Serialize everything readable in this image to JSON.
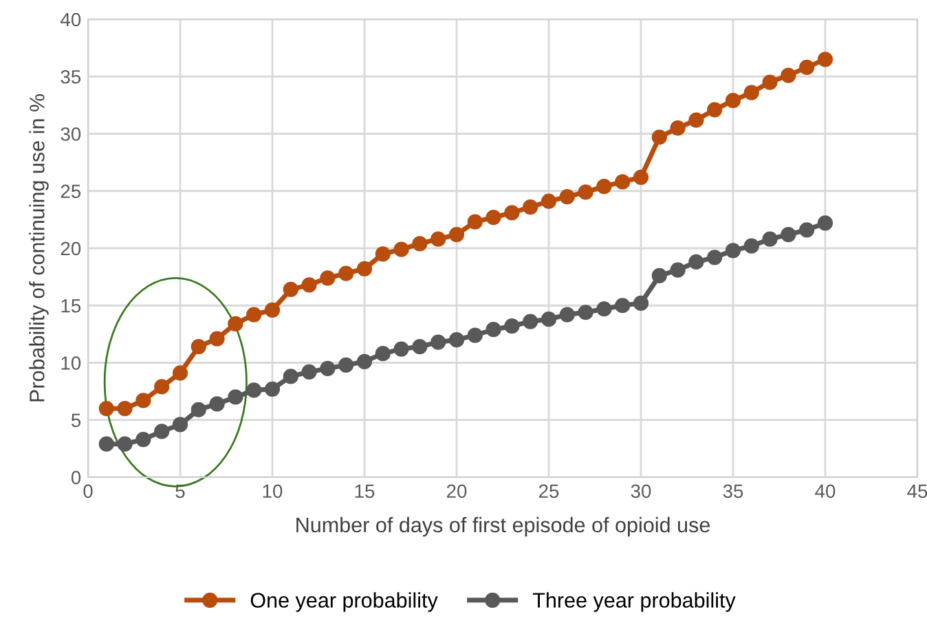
{
  "chart_data": {
    "type": "line",
    "xlabel": "Number of days of first episode of opioid use",
    "ylabel": "Probability of continuing use in %",
    "x": [
      1,
      2,
      3,
      4,
      5,
      6,
      7,
      8,
      9,
      10,
      11,
      12,
      13,
      14,
      15,
      16,
      17,
      18,
      19,
      20,
      21,
      22,
      23,
      24,
      25,
      26,
      27,
      28,
      29,
      30,
      31,
      32,
      33,
      34,
      35,
      36,
      37,
      38,
      39,
      40
    ],
    "series": [
      {
        "name": "One year probability",
        "color": "#b84d0e",
        "values": [
          6.0,
          6.0,
          6.7,
          7.9,
          9.1,
          11.4,
          12.1,
          13.4,
          14.2,
          14.6,
          16.4,
          16.8,
          17.4,
          17.8,
          18.2,
          19.5,
          19.9,
          20.4,
          20.8,
          21.2,
          22.3,
          22.7,
          23.1,
          23.6,
          24.1,
          24.5,
          24.9,
          25.4,
          25.8,
          26.2,
          29.7,
          30.5,
          31.2,
          32.1,
          32.9,
          33.6,
          34.5,
          35.1,
          35.8,
          36.5
        ]
      },
      {
        "name": "Three year probability",
        "color": "#595959",
        "values": [
          2.9,
          2.9,
          3.3,
          4.0,
          4.6,
          5.9,
          6.4,
          7.0,
          7.6,
          7.7,
          8.8,
          9.2,
          9.5,
          9.8,
          10.1,
          10.8,
          11.2,
          11.4,
          11.8,
          12.0,
          12.4,
          12.9,
          13.2,
          13.6,
          13.8,
          14.2,
          14.4,
          14.7,
          15.0,
          15.2,
          17.6,
          18.1,
          18.8,
          19.2,
          19.8,
          20.2,
          20.8,
          21.2,
          21.6,
          22.2
        ]
      }
    ],
    "xlim": [
      0,
      45
    ],
    "xticks": [
      0,
      5,
      10,
      15,
      20,
      25,
      30,
      35,
      40,
      45
    ],
    "ylim": [
      0,
      40
    ],
    "yticks": [
      0,
      5,
      10,
      15,
      20,
      25,
      30,
      35,
      40
    ],
    "grid": true,
    "legend": "bottom",
    "marker": "circle",
    "line_style": "solid"
  }
}
